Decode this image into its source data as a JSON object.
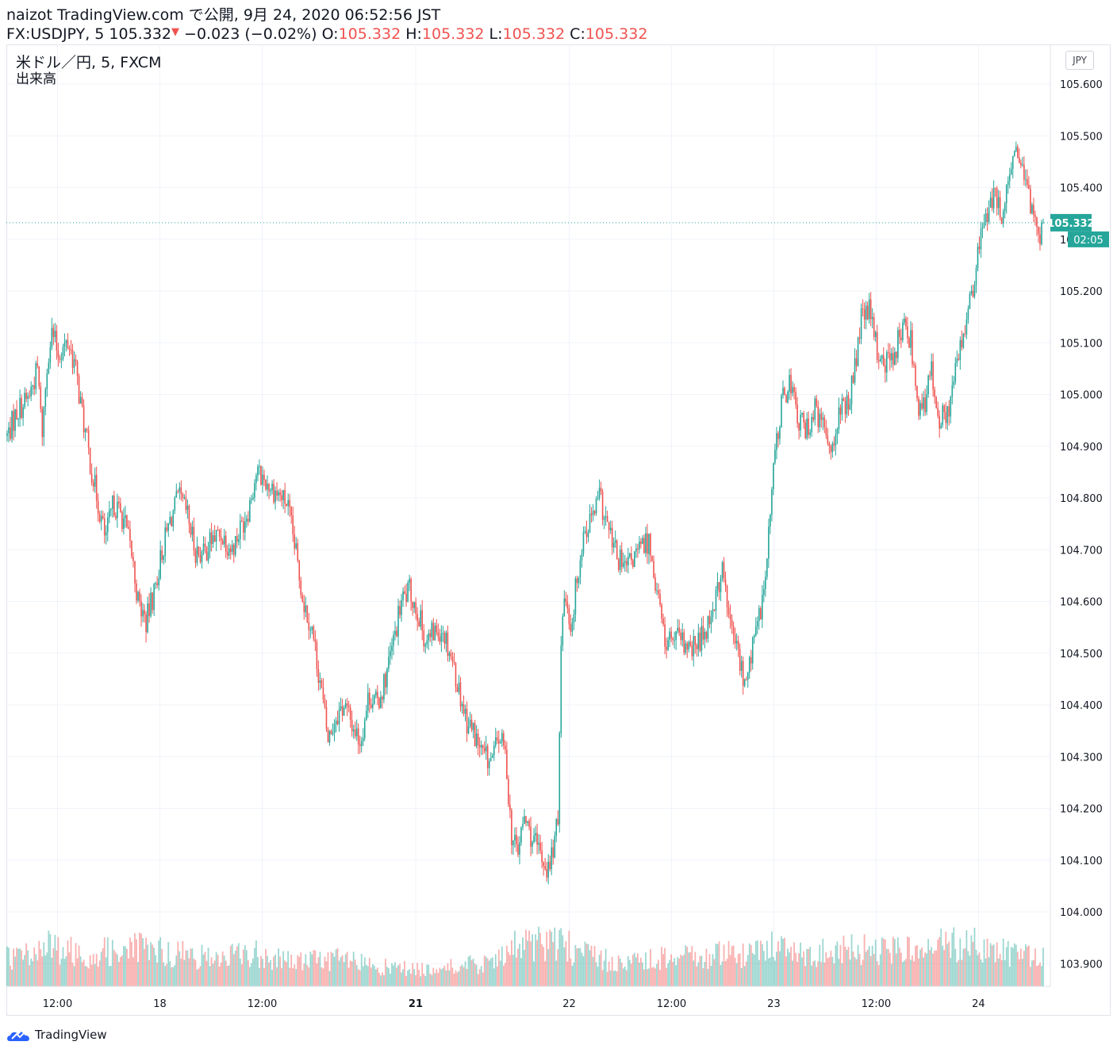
{
  "header": {
    "line1": "naizot TradingView.com で公開, 9月 24, 2020 06:52:56 JST",
    "symbol": "FX:USDJPY, 5",
    "price": "105.332",
    "change": "−0.023 (−0.02%)",
    "o_label": "O:",
    "o": "105.332",
    "h_label": "H:",
    "h": "105.332",
    "l_label": "L:",
    "l": "105.332",
    "c_label": "C:",
    "c": "105.332"
  },
  "legend": {
    "symbol_title": "米ドル／円, 5, FXCM",
    "volume": "出来高"
  },
  "currency_badge": "JPY",
  "price_tag": {
    "value": "105.332",
    "countdown": "02:05"
  },
  "brand": "TradingView",
  "colors": {
    "up": "#26a69a",
    "down": "#ef5350",
    "tag": "#26a69a",
    "grid": "#f0f3fa"
  },
  "icons": {
    "logo": "tradingview-cloud-icon",
    "down_arrow": "down-triangle-icon"
  },
  "chart_data": {
    "type": "candlestick",
    "instrument": "USD/JPY",
    "interval": "5",
    "source": "FXCM",
    "ylim": [
      103.86,
      105.67
    ],
    "y_ticks": [
      "105.600",
      "105.500",
      "105.400",
      "105.300",
      "105.200",
      "105.100",
      "105.000",
      "104.900",
      "104.800",
      "104.700",
      "104.600",
      "104.500",
      "104.400",
      "104.300",
      "104.200",
      "104.100",
      "104.000",
      "103.900"
    ],
    "x_ticks": [
      {
        "label": "12:00",
        "t": 2.5,
        "bold": false
      },
      {
        "label": "18",
        "t": 7.5,
        "bold": false
      },
      {
        "label": "12:00",
        "t": 12.5,
        "bold": false
      },
      {
        "label": "21",
        "t": 20.0,
        "bold": true
      },
      {
        "label": "22",
        "t": 27.5,
        "bold": false
      },
      {
        "label": "12:00",
        "t": 32.5,
        "bold": false
      },
      {
        "label": "23",
        "t": 37.5,
        "bold": false
      },
      {
        "label": "12:00",
        "t": 42.5,
        "bold": false
      },
      {
        "label": "24",
        "t": 47.5,
        "bold": false
      }
    ],
    "x_range": [
      0,
      50.7
    ],
    "last_price": 105.332,
    "path": [
      [
        0.0,
        104.92
      ],
      [
        0.5,
        104.97
      ],
      [
        1.0,
        104.99
      ],
      [
        1.5,
        105.05
      ],
      [
        1.7,
        104.92
      ],
      [
        2.0,
        105.08
      ],
      [
        2.2,
        105.12
      ],
      [
        2.5,
        105.08
      ],
      [
        3.0,
        105.1
      ],
      [
        3.3,
        105.06
      ],
      [
        3.6,
        104.98
      ],
      [
        4.1,
        104.86
      ],
      [
        4.5,
        104.78
      ],
      [
        4.8,
        104.72
      ],
      [
        5.2,
        104.79
      ],
      [
        5.7,
        104.76
      ],
      [
        6.1,
        104.69
      ],
      [
        6.4,
        104.6
      ],
      [
        6.8,
        104.56
      ],
      [
        7.2,
        104.62
      ],
      [
        7.6,
        104.7
      ],
      [
        8.0,
        104.76
      ],
      [
        8.4,
        104.8
      ],
      [
        8.8,
        104.77
      ],
      [
        9.2,
        104.7
      ],
      [
        9.6,
        104.69
      ],
      [
        10.0,
        104.72
      ],
      [
        10.5,
        104.73
      ],
      [
        11.0,
        104.7
      ],
      [
        11.4,
        104.74
      ],
      [
        11.8,
        104.78
      ],
      [
        12.2,
        104.85
      ],
      [
        12.7,
        104.83
      ],
      [
        13.2,
        104.81
      ],
      [
        13.7,
        104.79
      ],
      [
        14.1,
        104.7
      ],
      [
        14.5,
        104.6
      ],
      [
        14.9,
        104.55
      ],
      [
        15.3,
        104.45
      ],
      [
        15.7,
        104.33
      ],
      [
        16.1,
        104.38
      ],
      [
        16.5,
        104.4
      ],
      [
        16.9,
        104.36
      ],
      [
        17.3,
        104.33
      ],
      [
        17.7,
        104.42
      ],
      [
        18.1,
        104.4
      ],
      [
        18.5,
        104.45
      ],
      [
        18.9,
        104.52
      ],
      [
        19.3,
        104.6
      ],
      [
        19.7,
        104.62
      ],
      [
        20.1,
        104.58
      ],
      [
        20.5,
        104.52
      ],
      [
        20.9,
        104.54
      ],
      [
        21.3,
        104.55
      ],
      [
        21.7,
        104.5
      ],
      [
        22.1,
        104.43
      ],
      [
        22.5,
        104.37
      ],
      [
        22.9,
        104.34
      ],
      [
        23.3,
        104.3
      ],
      [
        23.7,
        104.29
      ],
      [
        24.1,
        104.34
      ],
      [
        24.4,
        104.3
      ],
      [
        24.7,
        104.14
      ],
      [
        25.0,
        104.12
      ],
      [
        25.3,
        104.18
      ],
      [
        25.7,
        104.14
      ],
      [
        26.1,
        104.11
      ],
      [
        26.5,
        104.08
      ],
      [
        26.8,
        104.14
      ],
      [
        27.0,
        104.18
      ],
      [
        27.05,
        104.5
      ],
      [
        27.3,
        104.62
      ],
      [
        27.6,
        104.55
      ],
      [
        27.9,
        104.65
      ],
      [
        28.2,
        104.73
      ],
      [
        28.6,
        104.76
      ],
      [
        29.0,
        104.8
      ],
      [
        29.4,
        104.74
      ],
      [
        29.8,
        104.69
      ],
      [
        30.2,
        104.66
      ],
      [
        30.6,
        104.68
      ],
      [
        31.0,
        104.7
      ],
      [
        31.4,
        104.72
      ],
      [
        31.8,
        104.62
      ],
      [
        32.2,
        104.52
      ],
      [
        32.6,
        104.53
      ],
      [
        33.0,
        104.52
      ],
      [
        33.4,
        104.5
      ],
      [
        33.8,
        104.52
      ],
      [
        34.2,
        104.55
      ],
      [
        34.6,
        104.6
      ],
      [
        35.0,
        104.66
      ],
      [
        35.4,
        104.55
      ],
      [
        35.8,
        104.5
      ],
      [
        36.1,
        104.43
      ],
      [
        36.4,
        104.5
      ],
      [
        36.8,
        104.57
      ],
      [
        37.1,
        104.64
      ],
      [
        37.3,
        104.75
      ],
      [
        37.6,
        104.9
      ],
      [
        37.9,
        104.98
      ],
      [
        38.3,
        105.03
      ],
      [
        38.7,
        104.95
      ],
      [
        39.1,
        104.93
      ],
      [
        39.5,
        104.97
      ],
      [
        39.9,
        104.94
      ],
      [
        40.3,
        104.9
      ],
      [
        40.7,
        104.96
      ],
      [
        41.1,
        104.98
      ],
      [
        41.5,
        105.05
      ],
      [
        41.8,
        105.15
      ],
      [
        42.2,
        105.16
      ],
      [
        42.6,
        105.08
      ],
      [
        43.0,
        105.06
      ],
      [
        43.4,
        105.08
      ],
      [
        43.8,
        105.13
      ],
      [
        44.2,
        105.11
      ],
      [
        44.6,
        104.98
      ],
      [
        44.9,
        104.97
      ],
      [
        45.2,
        105.05
      ],
      [
        45.6,
        104.96
      ],
      [
        45.9,
        104.95
      ],
      [
        46.2,
        105.0
      ],
      [
        46.6,
        105.08
      ],
      [
        47.0,
        105.16
      ],
      [
        47.3,
        105.2
      ],
      [
        47.6,
        105.3
      ],
      [
        47.9,
        105.35
      ],
      [
        48.3,
        105.38
      ],
      [
        48.7,
        105.35
      ],
      [
        49.0,
        105.4
      ],
      [
        49.4,
        105.48
      ],
      [
        49.8,
        105.4
      ],
      [
        50.2,
        105.36
      ],
      [
        50.5,
        105.31
      ],
      [
        50.7,
        105.332
      ]
    ],
    "volume_profile": [
      [
        0.0,
        0.25
      ],
      [
        2.0,
        0.35
      ],
      [
        4.0,
        0.28
      ],
      [
        6.0,
        0.35
      ],
      [
        8.0,
        0.3
      ],
      [
        10.0,
        0.25
      ],
      [
        12.0,
        0.3
      ],
      [
        14.0,
        0.22
      ],
      [
        16.0,
        0.25
      ],
      [
        18.0,
        0.18
      ],
      [
        20.0,
        0.15
      ],
      [
        22.0,
        0.18
      ],
      [
        24.0,
        0.22
      ],
      [
        25.0,
        0.38
      ],
      [
        27.0,
        0.4
      ],
      [
        28.0,
        0.3
      ],
      [
        30.0,
        0.2
      ],
      [
        32.0,
        0.26
      ],
      [
        34.0,
        0.28
      ],
      [
        36.0,
        0.3
      ],
      [
        37.5,
        0.36
      ],
      [
        39.0,
        0.28
      ],
      [
        41.0,
        0.35
      ],
      [
        43.0,
        0.3
      ],
      [
        45.0,
        0.35
      ],
      [
        47.0,
        0.38
      ],
      [
        49.0,
        0.3
      ],
      [
        50.7,
        0.26
      ]
    ]
  }
}
